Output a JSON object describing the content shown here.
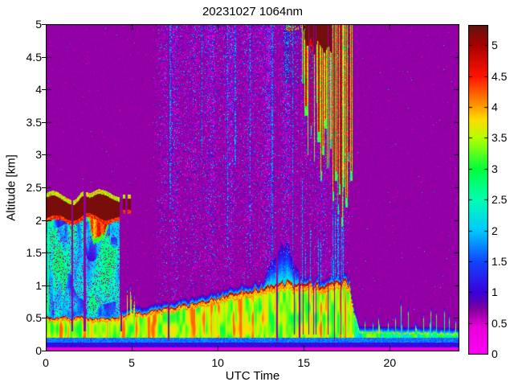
{
  "title": "20231027 1064nm",
  "colors": {
    "frame": "#000000",
    "text": "#000000",
    "page_background": "#ffffff"
  },
  "chart_data": {
    "type": "heatmap",
    "title": "20231027 1064nm",
    "xlabel": "UTC Time",
    "ylabel": "Altitude [km]",
    "x_range": [
      0,
      24
    ],
    "y_range": [
      0,
      5
    ],
    "grid": false,
    "legend_position": "colorbar-right",
    "x_ticks": [
      {
        "v": 0,
        "label": "0"
      },
      {
        "v": 5,
        "label": "5"
      },
      {
        "v": 10,
        "label": "10"
      },
      {
        "v": 15,
        "label": "15"
      },
      {
        "v": 20,
        "label": "20"
      }
    ],
    "y_ticks": [
      {
        "v": 0,
        "label": "0"
      },
      {
        "v": 0.5,
        "label": "0.5"
      },
      {
        "v": 1,
        "label": "1"
      },
      {
        "v": 1.5,
        "label": "1.5"
      },
      {
        "v": 2,
        "label": "2"
      },
      {
        "v": 2.5,
        "label": "2.5"
      },
      {
        "v": 3,
        "label": "3"
      },
      {
        "v": 3.5,
        "label": "3.5"
      },
      {
        "v": 4,
        "label": "4"
      },
      {
        "v": 4.5,
        "label": "4.5"
      },
      {
        "v": 5,
        "label": "5"
      }
    ],
    "colorbar": {
      "range": [
        0,
        5.33
      ],
      "ticks": [
        {
          "v": 0,
          "label": "0"
        },
        {
          "v": 0.5,
          "label": "0.5"
        },
        {
          "v": 1,
          "label": "1"
        },
        {
          "v": 1.5,
          "label": "1.5"
        },
        {
          "v": 2,
          "label": "2"
        },
        {
          "v": 2.5,
          "label": "2.5"
        },
        {
          "v": 3,
          "label": "3"
        },
        {
          "v": 3.5,
          "label": "3.5"
        },
        {
          "v": 4,
          "label": "4"
        },
        {
          "v": 4.5,
          "label": "4.5"
        },
        {
          "v": 5,
          "label": "5"
        }
      ]
    },
    "colormap_stops": [
      [
        0.0,
        "#ff00f4"
      ],
      [
        0.45,
        "#e800d8"
      ],
      [
        0.7,
        "#8c00a0"
      ],
      [
        0.85,
        "#5a00b4"
      ],
      [
        1.0,
        "#3c00dc"
      ],
      [
        1.5,
        "#1144ff"
      ],
      [
        2.0,
        "#00c8ff"
      ],
      [
        2.5,
        "#00ffb4"
      ],
      [
        3.0,
        "#00ff3c"
      ],
      [
        3.5,
        "#b4ff00"
      ],
      [
        3.8,
        "#ffdc00"
      ],
      [
        4.0,
        "#ffa000"
      ],
      [
        4.5,
        "#ff1400"
      ],
      [
        5.0,
        "#aa0000"
      ],
      [
        5.33,
        "#601410"
      ]
    ],
    "background_value": 0.68,
    "boundary_layer_top": {
      "t": [
        0,
        0.5,
        1,
        1.5,
        2,
        2.5,
        3,
        3.5,
        4,
        4.5,
        5,
        5.5,
        6,
        6.5,
        7,
        7.5,
        8,
        9,
        10,
        11,
        12,
        13,
        13.5,
        14,
        14.5,
        15,
        15.5,
        16,
        16.5,
        17,
        17.4,
        17.65,
        17.9,
        18.2,
        24
      ],
      "km": [
        0.52,
        0.5,
        0.53,
        0.5,
        0.54,
        0.5,
        0.52,
        0.5,
        0.52,
        0.56,
        0.6,
        0.58,
        0.62,
        0.64,
        0.66,
        0.68,
        0.7,
        0.76,
        0.82,
        0.9,
        0.94,
        1.0,
        1.02,
        1.06,
        1.02,
        1.05,
        1.02,
        1.0,
        1.02,
        1.05,
        1.08,
        1.0,
        0.6,
        0.3,
        0.27
      ]
    },
    "surface_plumes": [
      [
        4.72,
        0.9
      ],
      [
        4.92,
        1.0
      ],
      [
        5.12,
        0.85
      ]
    ],
    "evening_spikes": [
      [
        18.55,
        0.45
      ],
      [
        19.0,
        0.4
      ],
      [
        19.35,
        0.55
      ],
      [
        19.9,
        0.42
      ],
      [
        20.3,
        0.5
      ],
      [
        20.65,
        0.72
      ],
      [
        21.05,
        0.6
      ],
      [
        21.5,
        0.45
      ],
      [
        21.95,
        0.5
      ],
      [
        22.35,
        0.65
      ],
      [
        22.7,
        0.55
      ],
      [
        23.15,
        0.6
      ],
      [
        23.45,
        0.5
      ],
      [
        23.8,
        0.45
      ]
    ],
    "low_cloud": {
      "t_start": 0,
      "t_end": 4.27,
      "base_km": 2.02,
      "top_km": 2.3,
      "virga": {
        "t_start": 2.35,
        "t_end": 3.65,
        "max_depth_km": 0.45
      },
      "remnants": [
        [
          4.45,
          4.6
        ],
        [
          4.75,
          4.92
        ]
      ]
    },
    "sub_cloud_haze": {
      "t_start": 0,
      "t_end": 4.27
    },
    "high_cloud": {
      "solid": {
        "t_start": 15.02,
        "t_end": 16.58,
        "base_km": 4.5
      },
      "streaks": [
        [
          14.95,
          4.1
        ],
        [
          15.1,
          3.6
        ],
        [
          15.25,
          3.0
        ],
        [
          15.4,
          3.3
        ],
        [
          15.55,
          2.9
        ],
        [
          15.7,
          3.8
        ],
        [
          15.85,
          3.2
        ],
        [
          16.0,
          2.6
        ],
        [
          16.1,
          3.0
        ],
        [
          16.25,
          3.4
        ],
        [
          16.4,
          2.8
        ],
        [
          16.55,
          3.1
        ],
        [
          16.7,
          2.3
        ],
        [
          16.85,
          2.6
        ],
        [
          17.0,
          2.1
        ],
        [
          17.1,
          2.4
        ],
        [
          17.2,
          1.9
        ],
        [
          17.3,
          2.5
        ],
        [
          17.45,
          2.2
        ],
        [
          17.6,
          2.9
        ],
        [
          17.75,
          2.6
        ]
      ],
      "top_specks": [
        13.95,
        15.05
      ]
    },
    "noise_band": {
      "t_start": 6.2,
      "t_end": 17.65,
      "full_from": 7.4,
      "base_density": 0.5
    },
    "cyan_dome": {
      "t_start": 12.5,
      "t_end": 15.0,
      "max_height_km": 0.6
    },
    "blue_columns": [
      [
        7.22,
        2.2
      ],
      [
        9.05,
        3.0
      ],
      [
        10.55,
        1.5
      ],
      [
        11.0,
        2.8
      ],
      [
        11.85,
        1.4
      ],
      [
        13.15,
        1.3
      ],
      [
        14.35,
        1.2
      ]
    ],
    "cyan_columns": {
      "t_start": 14.45,
      "t_end": 17.6,
      "density": 0.3,
      "top_min": 1.3,
      "top_max": 2.9
    },
    "dropouts": [
      [
        1.48,
        1.58,
        0.3
      ],
      [
        2.18,
        2.3,
        0.3
      ],
      [
        4.3,
        4.42,
        0.3
      ],
      [
        7.08,
        7.16,
        0.15
      ],
      [
        13.38,
        13.46,
        0.15
      ],
      [
        14.68,
        14.76,
        0.2
      ],
      [
        16.72,
        16.8,
        0.15
      ]
    ],
    "dropout_bands": [
      {
        "t_start": 14.4,
        "t_end": 15.35,
        "density": 0.18
      },
      {
        "t_start": 15.4,
        "t_end": 17.55,
        "density": 0.08
      }
    ]
  }
}
